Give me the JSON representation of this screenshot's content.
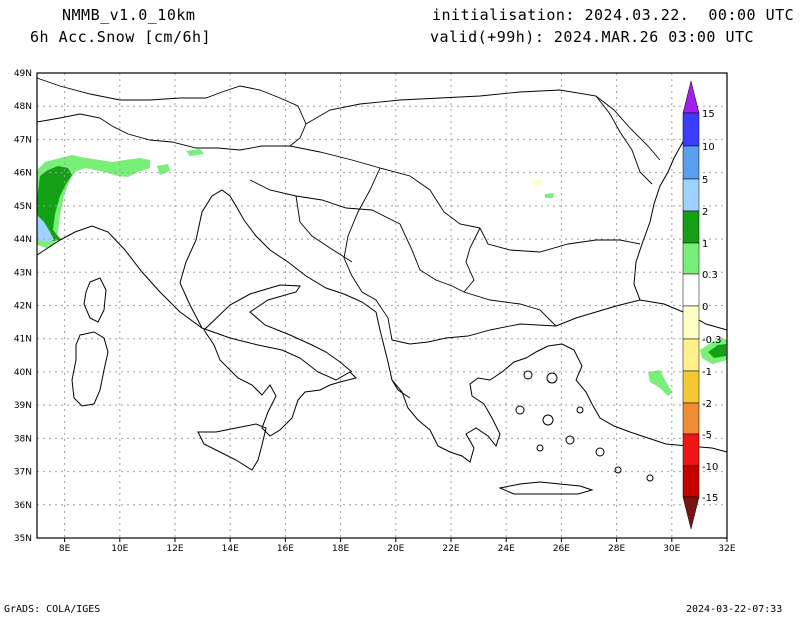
{
  "header": {
    "model": "NMMB_v1.0_10km",
    "field": "6h Acc.Snow [cm/6h]",
    "init": "initialisation: 2024.03.22.  00:00 UTC",
    "valid": "valid(+99h): 2024.MAR.26 03:00 UTC"
  },
  "footer": {
    "credit": "GrADS: COLA/IGES",
    "timestamp": "2024-03-22-07:33"
  },
  "map": {
    "lat_ticks": [
      "49N",
      "48N",
      "47N",
      "46N",
      "45N",
      "44N",
      "43N",
      "42N",
      "41N",
      "40N",
      "39N",
      "38N",
      "37N",
      "36N",
      "35N"
    ],
    "lon_ticks": [
      "8E",
      "10E",
      "12E",
      "14E",
      "16E",
      "18E",
      "20E",
      "22E",
      "24E",
      "26E",
      "28E",
      "30E",
      "32E"
    ],
    "lat_range": [
      35,
      49
    ],
    "lon_range": [
      7,
      32
    ],
    "grid": true
  },
  "legend": {
    "labels": [
      "15",
      "10",
      "5",
      "2",
      "1",
      "0.3",
      "0",
      "-0.3",
      "-1",
      "-2",
      "-5",
      "-10",
      "-15"
    ],
    "colors": {
      "over": "#a020f0",
      "c10_15": "#3c3cff",
      "c5_10": "#5a9ef0",
      "c2_5": "#a0d2ff",
      "c1_2": "#14a014",
      "c03_1": "#78f078",
      "c0_03": "#ffffff",
      "n0_03": "#ffffc8",
      "n03_1": "#fff08c",
      "n1_2": "#f5c832",
      "n2_5": "#f08c32",
      "n5_10": "#f01414",
      "n10_15": "#c80000",
      "under": "#781414"
    }
  }
}
